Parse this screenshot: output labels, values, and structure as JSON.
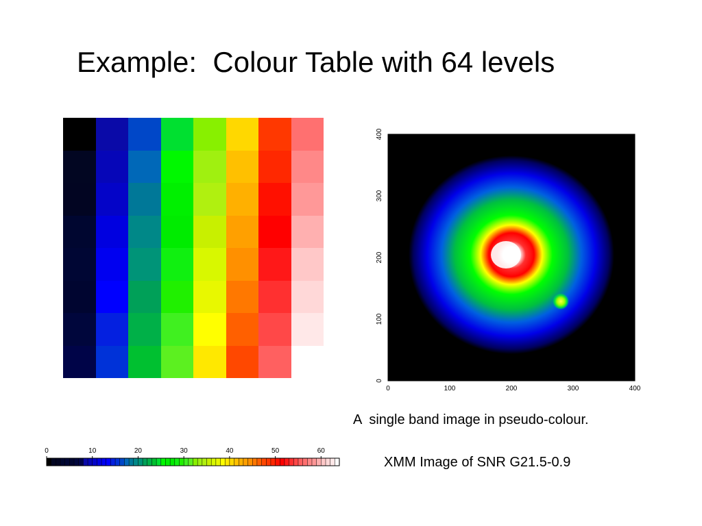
{
  "slide": {
    "title": "Example:  Colour Table with 64 levels",
    "caption1": "A  single band image in pseudo-colour.",
    "caption2": "XMM Image of SNR G21.5-0.9"
  },
  "colour_table": {
    "levels": 64,
    "colors": [
      "#000000",
      "#020622",
      "#020522",
      "#000630",
      "#000634",
      "#000530",
      "#00063c",
      "#000448",
      "#0a0aa8",
      "#0606b8",
      "#0404c8",
      "#0000e0",
      "#0000f0",
      "#0000ff",
      "#0420e0",
      "#0032d8",
      "#0047c8",
      "#0068b8",
      "#007898",
      "#008888",
      "#009478",
      "#00a058",
      "#00b048",
      "#00c030",
      "#00e030",
      "#00f800",
      "#00f000",
      "#00ec00",
      "#10f010",
      "#20f000",
      "#40f020",
      "#5cf020",
      "#88f000",
      "#a0f010",
      "#b0f010",
      "#c8f000",
      "#d8f800",
      "#e8f800",
      "#ffff00",
      "#ffe800",
      "#ffd800",
      "#ffc000",
      "#ffb000",
      "#ffa000",
      "#ff9000",
      "#ff7800",
      "#ff6000",
      "#ff4800",
      "#ff3800",
      "#ff2800",
      "#ff1000",
      "#ff0000",
      "#ff1818",
      "#ff3030",
      "#ff4848",
      "#ff6060",
      "#ff7070",
      "#ff8888",
      "#ff9898",
      "#ffb0b0",
      "#ffc8c8",
      "#ffd8d8",
      "#ffe8e8",
      "#ffffff"
    ],
    "tick_labels": [
      "0",
      "10",
      "20",
      "30",
      "40",
      "50",
      "60"
    ]
  },
  "image_axes": {
    "x_ticks": [
      "0",
      "100",
      "200",
      "300",
      "400"
    ],
    "y_ticks": [
      "0",
      "100",
      "200",
      "300",
      "400"
    ]
  }
}
